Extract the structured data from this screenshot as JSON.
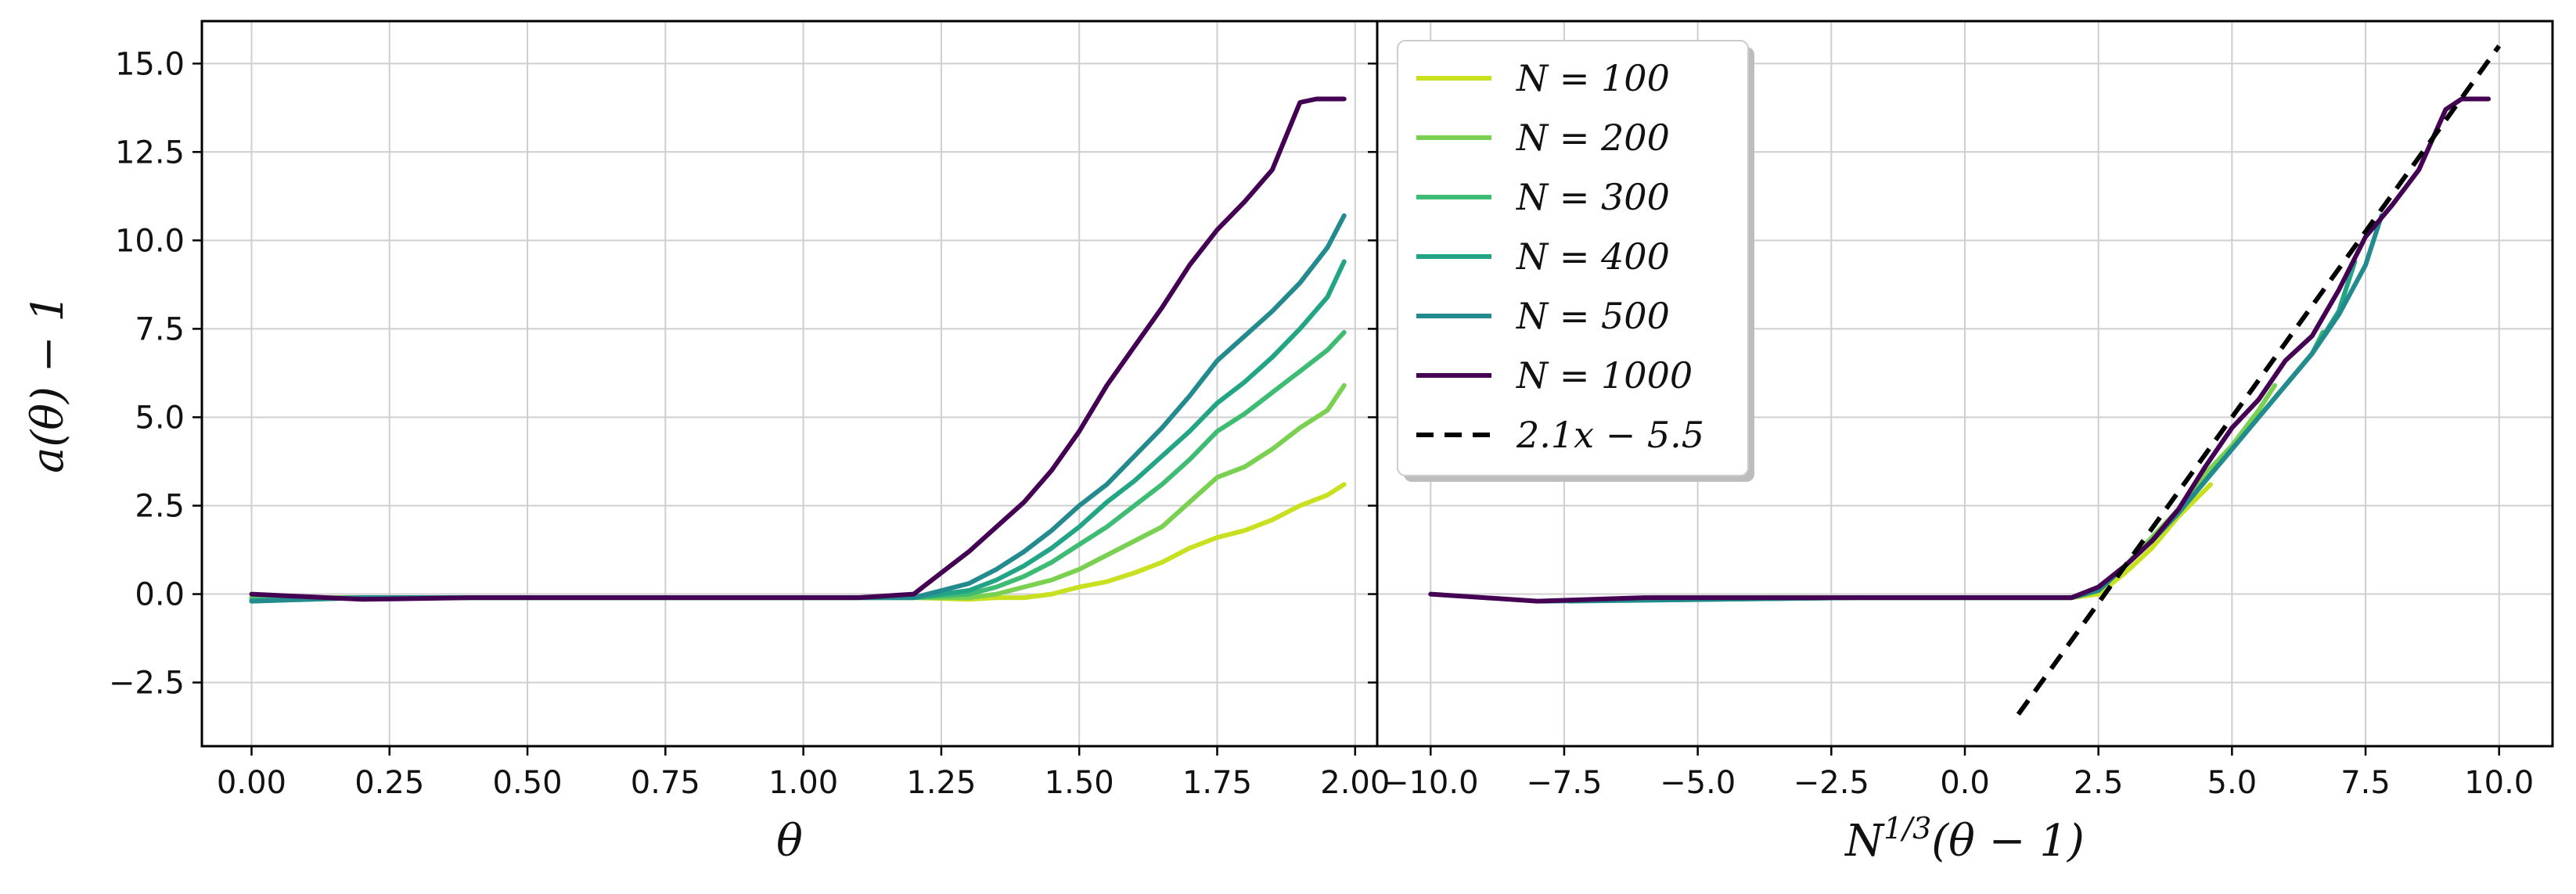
{
  "chart_data": [
    {
      "type": "line",
      "xlabel": "θ",
      "ylabel": "a(θ) − 1",
      "xlim": [
        -0.09,
        2.04
      ],
      "ylim": [
        -4.3,
        16.2
      ],
      "x_ticks": [
        "0.00",
        "0.25",
        "0.50",
        "0.75",
        "1.00",
        "1.25",
        "1.50",
        "1.75",
        "2.00"
      ],
      "y_ticks": [
        "−2.5",
        "0.0",
        "2.5",
        "5.0",
        "7.5",
        "10.0",
        "12.5",
        "15.0"
      ],
      "grid": true,
      "series": [
        {
          "name": "N = 100",
          "color": "#c8e020",
          "x": [
            0,
            0.2,
            0.4,
            0.6,
            0.8,
            1.0,
            1.2,
            1.3,
            1.35,
            1.4,
            1.45,
            1.5,
            1.55,
            1.6,
            1.65,
            1.7,
            1.75,
            1.8,
            1.85,
            1.9,
            1.95,
            1.98
          ],
          "y": [
            -0.1,
            -0.1,
            -0.1,
            -0.1,
            -0.1,
            -0.1,
            -0.1,
            -0.15,
            -0.1,
            -0.1,
            0.0,
            0.2,
            0.35,
            0.6,
            0.9,
            1.3,
            1.6,
            1.8,
            2.1,
            2.5,
            2.8,
            3.1
          ]
        },
        {
          "name": "N = 200",
          "color": "#7ad151",
          "x": [
            0,
            0.2,
            0.4,
            0.6,
            0.8,
            1.0,
            1.2,
            1.3,
            1.35,
            1.4,
            1.45,
            1.5,
            1.55,
            1.6,
            1.65,
            1.7,
            1.75,
            1.8,
            1.85,
            1.9,
            1.95,
            1.98
          ],
          "y": [
            -0.1,
            -0.1,
            -0.1,
            -0.1,
            -0.1,
            -0.1,
            -0.1,
            -0.1,
            0.0,
            0.2,
            0.4,
            0.7,
            1.1,
            1.5,
            1.9,
            2.6,
            3.3,
            3.6,
            4.1,
            4.7,
            5.2,
            5.9
          ]
        },
        {
          "name": "N = 300",
          "color": "#3fbc73",
          "x": [
            0,
            0.2,
            0.4,
            0.6,
            0.8,
            1.0,
            1.2,
            1.3,
            1.35,
            1.4,
            1.45,
            1.5,
            1.55,
            1.6,
            1.65,
            1.7,
            1.75,
            1.8,
            1.85,
            1.9,
            1.95,
            1.98
          ],
          "y": [
            -0.15,
            -0.1,
            -0.1,
            -0.1,
            -0.1,
            -0.1,
            -0.1,
            0.0,
            0.2,
            0.5,
            0.9,
            1.4,
            1.9,
            2.5,
            3.1,
            3.8,
            4.6,
            5.1,
            5.7,
            6.3,
            6.9,
            7.4
          ]
        },
        {
          "name": "N = 400",
          "color": "#21a585",
          "x": [
            0,
            0.2,
            0.4,
            0.6,
            0.8,
            1.0,
            1.2,
            1.3,
            1.35,
            1.4,
            1.45,
            1.5,
            1.55,
            1.6,
            1.65,
            1.7,
            1.75,
            1.8,
            1.85,
            1.9,
            1.95,
            1.98
          ],
          "y": [
            -0.2,
            -0.1,
            -0.1,
            -0.1,
            -0.1,
            -0.1,
            -0.1,
            0.1,
            0.4,
            0.8,
            1.3,
            1.9,
            2.6,
            3.2,
            3.9,
            4.6,
            5.4,
            6.0,
            6.7,
            7.5,
            8.4,
            9.4
          ]
        },
        {
          "name": "N = 500",
          "color": "#238a8d",
          "x": [
            0,
            0.2,
            0.4,
            0.6,
            0.8,
            1.0,
            1.2,
            1.3,
            1.35,
            1.4,
            1.45,
            1.5,
            1.55,
            1.6,
            1.65,
            1.7,
            1.75,
            1.8,
            1.85,
            1.9,
            1.95,
            1.98
          ],
          "y": [
            -0.2,
            -0.1,
            -0.1,
            -0.1,
            -0.1,
            -0.1,
            -0.1,
            0.3,
            0.7,
            1.2,
            1.8,
            2.5,
            3.1,
            3.9,
            4.7,
            5.6,
            6.6,
            7.3,
            8.0,
            8.8,
            9.8,
            10.7
          ]
        },
        {
          "name": "N = 1000",
          "color": "#440154",
          "x": [
            0,
            0.2,
            0.4,
            0.6,
            0.8,
            1.0,
            1.1,
            1.2,
            1.25,
            1.3,
            1.35,
            1.4,
            1.45,
            1.5,
            1.55,
            1.6,
            1.65,
            1.7,
            1.75,
            1.8,
            1.85,
            1.9,
            1.93,
            1.98
          ],
          "y": [
            0.0,
            -0.15,
            -0.1,
            -0.1,
            -0.1,
            -0.1,
            -0.1,
            0.0,
            0.6,
            1.2,
            1.9,
            2.6,
            3.5,
            4.6,
            5.9,
            7.0,
            8.1,
            9.3,
            10.3,
            11.1,
            12.0,
            13.9,
            14.0,
            14.0
          ]
        }
      ]
    },
    {
      "type": "line",
      "xlabel": "N^{1/3}(θ − 1)",
      "xlabel_base": "N",
      "xlabel_sup": "1/3",
      "xlabel_rest": "(θ − 1)",
      "ylabel": "",
      "xlim": [
        -11.0,
        11.0
      ],
      "ylim": [
        -4.3,
        16.2
      ],
      "x_ticks": [
        "−10.0",
        "−7.5",
        "−5.0",
        "−2.5",
        "0.0",
        "2.5",
        "5.0",
        "7.5",
        "10.0"
      ],
      "grid": true,
      "legend": {
        "position": "top-left",
        "entries": [
          "N = 100",
          "N = 200",
          "N = 300",
          "N = 400",
          "N = 500",
          "N = 1000",
          "2.1x − 5.5"
        ]
      },
      "series": [
        {
          "name": "N = 100",
          "color": "#c8e020",
          "x": [
            -4.6,
            -2.0,
            0.0,
            2.0,
            2.5,
            3.0,
            3.5,
            4.0,
            4.6
          ],
          "y": [
            -0.1,
            -0.1,
            -0.1,
            -0.1,
            0.0,
            0.6,
            1.3,
            2.2,
            3.1
          ]
        },
        {
          "name": "N = 200",
          "color": "#7ad151",
          "x": [
            -5.8,
            -2.0,
            0.0,
            2.0,
            2.5,
            3.0,
            3.5,
            4.0,
            4.5,
            5.0,
            5.5,
            5.8
          ],
          "y": [
            -0.1,
            -0.1,
            -0.1,
            -0.1,
            0.1,
            0.8,
            1.6,
            2.4,
            3.4,
            4.2,
            5.2,
            5.9
          ]
        },
        {
          "name": "N = 300",
          "color": "#3fbc73",
          "x": [
            -6.7,
            -2.0,
            0.0,
            2.0,
            2.5,
            3.0,
            3.5,
            4.0,
            4.5,
            5.0,
            5.5,
            6.0,
            6.5,
            6.7
          ],
          "y": [
            -0.15,
            -0.1,
            -0.1,
            -0.1,
            0.1,
            0.8,
            1.5,
            2.3,
            3.2,
            4.1,
            5.0,
            5.9,
            6.8,
            7.4
          ]
        },
        {
          "name": "N = 400",
          "color": "#21a585",
          "x": [
            -7.4,
            -2.0,
            0.0,
            2.0,
            2.5,
            3.0,
            3.5,
            4.0,
            4.5,
            5.0,
            5.5,
            6.0,
            6.5,
            7.0,
            7.3
          ],
          "y": [
            -0.2,
            -0.1,
            -0.1,
            -0.1,
            0.1,
            0.8,
            1.5,
            2.3,
            3.2,
            4.1,
            5.0,
            5.9,
            6.8,
            8.0,
            9.4
          ]
        },
        {
          "name": "N = 500",
          "color": "#238a8d",
          "x": [
            -7.9,
            -2.0,
            0.0,
            2.0,
            2.5,
            3.0,
            3.5,
            4.0,
            4.5,
            5.0,
            5.5,
            6.0,
            6.5,
            7.0,
            7.5,
            7.8
          ],
          "y": [
            -0.2,
            -0.1,
            -0.1,
            -0.1,
            0.1,
            0.8,
            1.5,
            2.3,
            3.2,
            4.1,
            5.0,
            5.9,
            6.8,
            7.9,
            9.3,
            10.7
          ]
        },
        {
          "name": "N = 1000",
          "color": "#440154",
          "x": [
            -10.0,
            -8.0,
            -6.0,
            -4.0,
            -2.0,
            0.0,
            1.0,
            2.0,
            2.5,
            3.0,
            3.5,
            4.0,
            4.5,
            5.0,
            5.5,
            6.0,
            6.5,
            7.0,
            7.5,
            8.0,
            8.5,
            9.0,
            9.3,
            9.8
          ],
          "y": [
            0.0,
            -0.2,
            -0.1,
            -0.1,
            -0.1,
            -0.1,
            -0.1,
            -0.1,
            0.2,
            0.8,
            1.5,
            2.4,
            3.6,
            4.7,
            5.5,
            6.6,
            7.3,
            8.6,
            10.1,
            11.0,
            12.0,
            13.7,
            14.0,
            14.0
          ]
        },
        {
          "name": "2.1x − 5.5",
          "color": "#000000",
          "dashed": true,
          "x": [
            1.0,
            10.0
          ],
          "y": [
            -3.4,
            15.5
          ]
        }
      ]
    }
  ]
}
